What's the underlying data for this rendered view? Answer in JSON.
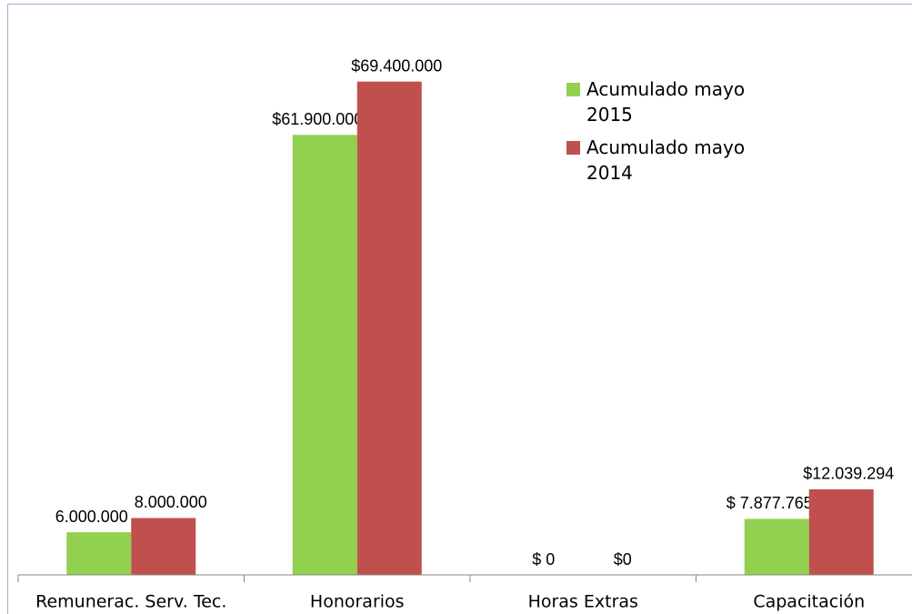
{
  "chart_data": {
    "type": "bar",
    "categories": [
      "Remunerac. Serv. Tec.",
      "Honorarios",
      "Horas Extras",
      "Capacitación"
    ],
    "series": [
      {
        "name": "Acumulado mayo 2015",
        "color": "#92d050",
        "values": [
          6000000,
          61900000,
          0,
          7877765
        ],
        "value_labels": [
          "6.000.000",
          "$61.900.000",
          "$ 0",
          "$ 7.877.765"
        ]
      },
      {
        "name": "Acumulado mayo 2014",
        "color": "#c0504d",
        "values": [
          8000000,
          69400000,
          0,
          12039294
        ],
        "value_labels": [
          "8.000.000",
          "$69.400.000",
          "$0",
          "$12.039.294"
        ]
      }
    ],
    "ylim": [
      0,
      70000000
    ],
    "legend": "right"
  }
}
